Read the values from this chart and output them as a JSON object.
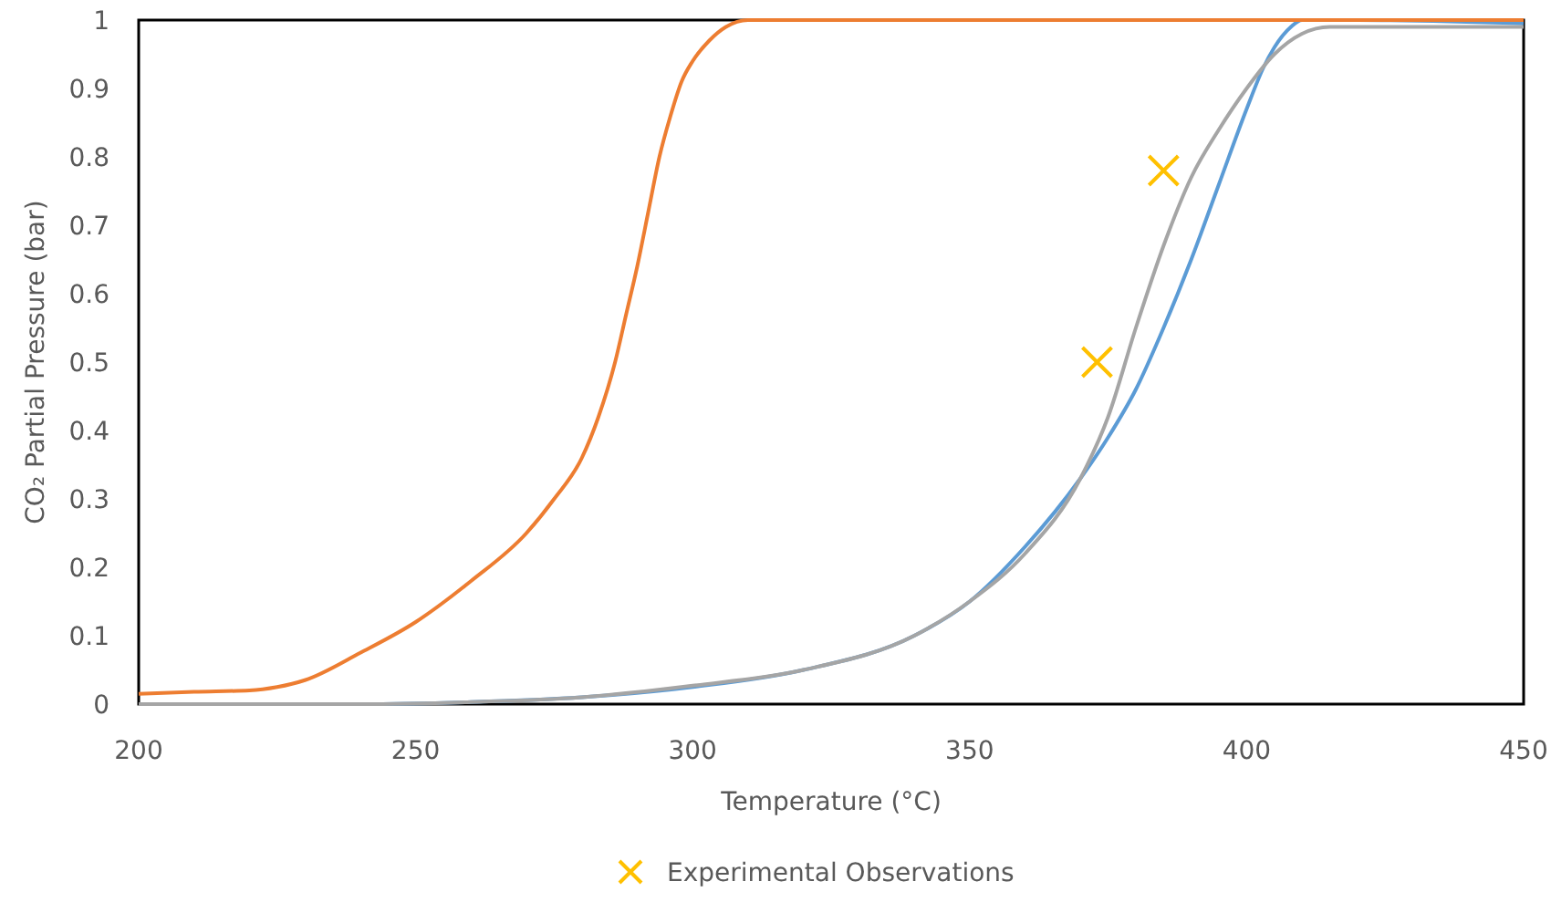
{
  "chart_data": {
    "type": "line",
    "xlabel": "Temperature (°C)",
    "ylabel": "CO₂ Partial Pressure (bar)",
    "xlim": [
      200,
      450
    ],
    "ylim": [
      0,
      1
    ],
    "xticks": [
      200,
      250,
      300,
      350,
      400,
      450
    ],
    "yticks": [
      0,
      0.1,
      0.2,
      0.3,
      0.4,
      0.5,
      0.6,
      0.7,
      0.8,
      0.9,
      1
    ],
    "grid": false,
    "legend": "bottom",
    "marker": "none",
    "line_style": "solid",
    "series": [
      {
        "color": "#5b9bd5",
        "x": [
          200,
          220,
          240,
          260,
          280,
          300,
          320,
          340,
          350,
          360,
          370,
          375,
          380,
          385,
          390,
          395,
          400,
          403,
          405,
          408,
          410,
          420,
          450
        ],
        "values": [
          0,
          0,
          0,
          0.003,
          0.01,
          0.025,
          0.05,
          0.1,
          0.15,
          0.23,
          0.33,
          0.39,
          0.46,
          0.55,
          0.65,
          0.76,
          0.87,
          0.93,
          0.96,
          0.99,
          1,
          1,
          0.995
        ]
      },
      {
        "color": "#ed7d31",
        "x": [
          200,
          210,
          220,
          225,
          230,
          240,
          250,
          260,
          270,
          275,
          280,
          283,
          286,
          288,
          290,
          292,
          294,
          296,
          298,
          300,
          303,
          306,
          310,
          350,
          400,
          450
        ],
        "values": [
          0.015,
          0.018,
          0.02,
          0.025,
          0.035,
          0.075,
          0.12,
          0.18,
          0.25,
          0.3,
          0.36,
          0.42,
          0.5,
          0.57,
          0.64,
          0.72,
          0.8,
          0.86,
          0.91,
          0.94,
          0.97,
          0.99,
          1,
          1,
          1,
          1
        ]
      },
      {
        "color": "#a5a5a5",
        "x": [
          200,
          220,
          240,
          260,
          280,
          300,
          320,
          340,
          350,
          360,
          370,
          375,
          380,
          385,
          390,
          395,
          400,
          405,
          410,
          415,
          420,
          450
        ],
        "values": [
          0,
          0,
          0,
          0.003,
          0.01,
          0.027,
          0.05,
          0.1,
          0.15,
          0.22,
          0.33,
          0.42,
          0.55,
          0.67,
          0.77,
          0.84,
          0.9,
          0.95,
          0.98,
          0.99,
          0.99,
          0.99
        ]
      },
      {
        "type": "scatter",
        "name": "Experimental Observations",
        "color": "#ffc000",
        "marker": "cross",
        "x": [
          373,
          385
        ],
        "values": [
          0.5,
          0.78
        ]
      }
    ]
  }
}
